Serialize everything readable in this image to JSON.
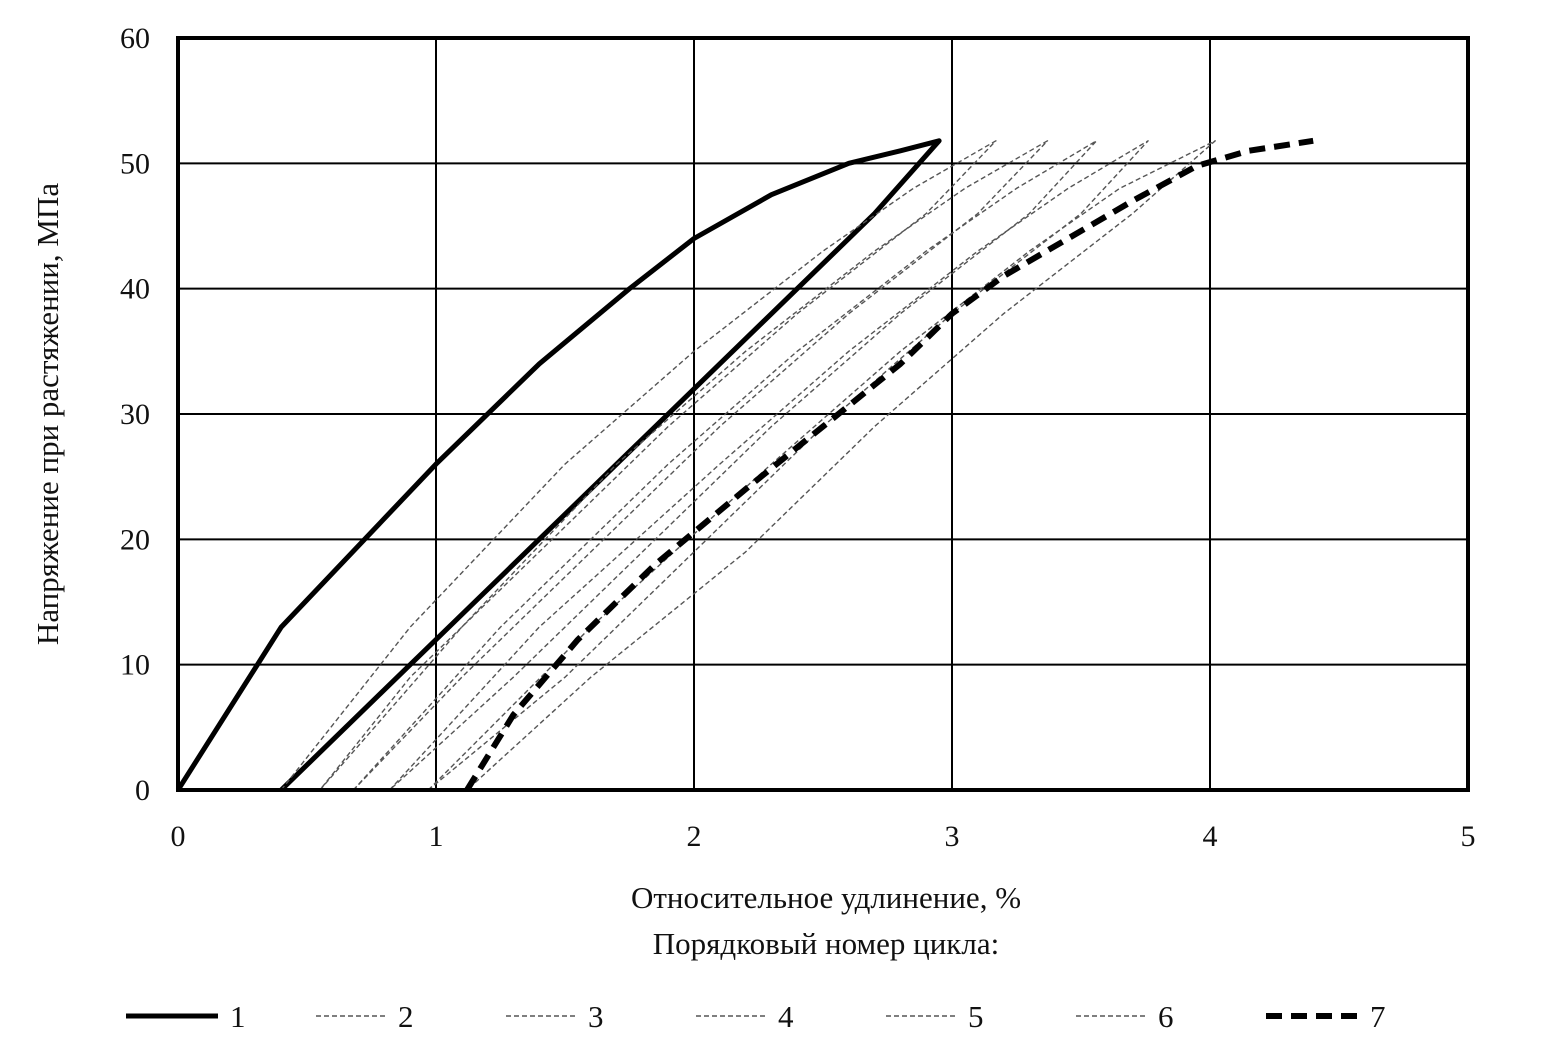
{
  "chart_data": {
    "type": "line",
    "xlabel": "Относительное удлинение, %",
    "ylabel": "Напряжение при растяжении, МПа",
    "legend_title": "Порядковый номер цикла:",
    "legend_position": "bottom",
    "grid": true,
    "xlim": [
      0,
      5
    ],
    "ylim": [
      0,
      60
    ],
    "xticks": [
      "0",
      "1",
      "2",
      "3",
      "4",
      "5"
    ],
    "yticks": [
      "0",
      "10",
      "20",
      "30",
      "40",
      "50",
      "60"
    ],
    "series": [
      {
        "name": "1",
        "style": "solid-bold",
        "x": [
          0,
          0.4,
          1.0,
          1.4,
          1.75,
          2.0,
          2.3,
          2.6,
          2.8,
          2.95,
          2.7,
          2.4,
          2.0,
          1.6,
          1.2,
          0.8,
          0.4
        ],
        "y": [
          0,
          13,
          26,
          34,
          40,
          44,
          47.5,
          50,
          51,
          51.8,
          46,
          40,
          32,
          24,
          16,
          8,
          0
        ]
      },
      {
        "name": "2",
        "style": "dashed-thin",
        "x": [
          0.4,
          0.9,
          1.5,
          2.0,
          2.5,
          2.85,
          3.17,
          2.9,
          2.4,
          1.9,
          1.4,
          0.9,
          0.55
        ],
        "y": [
          0,
          13,
          26,
          35,
          43,
          48,
          51.8,
          46,
          38,
          29,
          19,
          9,
          0
        ]
      },
      {
        "name": "3",
        "style": "dashed-thin",
        "x": [
          0.55,
          1.1,
          1.7,
          2.2,
          2.7,
          3.05,
          3.37,
          3.1,
          2.6,
          2.1,
          1.6,
          1.1,
          0.68
        ],
        "y": [
          0,
          13,
          26,
          35,
          43,
          48,
          51.8,
          46,
          38,
          29,
          19,
          9,
          0
        ]
      },
      {
        "name": "4",
        "style": "dashed-thin",
        "x": [
          0.68,
          1.25,
          1.9,
          2.4,
          2.9,
          3.25,
          3.56,
          3.3,
          2.8,
          2.3,
          1.8,
          1.3,
          0.82
        ],
        "y": [
          0,
          13,
          26,
          35,
          43,
          48,
          51.8,
          46,
          38,
          29,
          19,
          9,
          0
        ]
      },
      {
        "name": "5",
        "style": "dashed-thin",
        "x": [
          0.82,
          1.4,
          2.1,
          2.6,
          3.1,
          3.45,
          3.76,
          3.5,
          3.0,
          2.5,
          2.0,
          1.5,
          0.97
        ],
        "y": [
          0,
          13,
          26,
          35,
          43,
          48,
          51.8,
          46,
          38,
          29,
          19,
          9,
          0
        ]
      },
      {
        "name": "6",
        "style": "dashed-thin",
        "x": [
          0.97,
          1.6,
          2.3,
          2.8,
          3.3,
          3.65,
          4.02,
          3.7,
          3.2,
          2.7,
          2.2,
          1.6,
          1.12
        ],
        "y": [
          0,
          13,
          26,
          35,
          43,
          48,
          51.8,
          46,
          38,
          29,
          19,
          9,
          0
        ]
      },
      {
        "name": "7",
        "style": "dashed-bold",
        "x": [
          1.12,
          1.3,
          1.55,
          1.85,
          2.2,
          2.5,
          2.8,
          3.0,
          3.2,
          3.45,
          3.7,
          3.95,
          4.15,
          4.4
        ],
        "y": [
          0,
          6,
          12,
          18,
          24,
          29,
          34,
          38,
          41,
          44,
          47,
          49.8,
          51,
          51.8
        ]
      }
    ]
  }
}
